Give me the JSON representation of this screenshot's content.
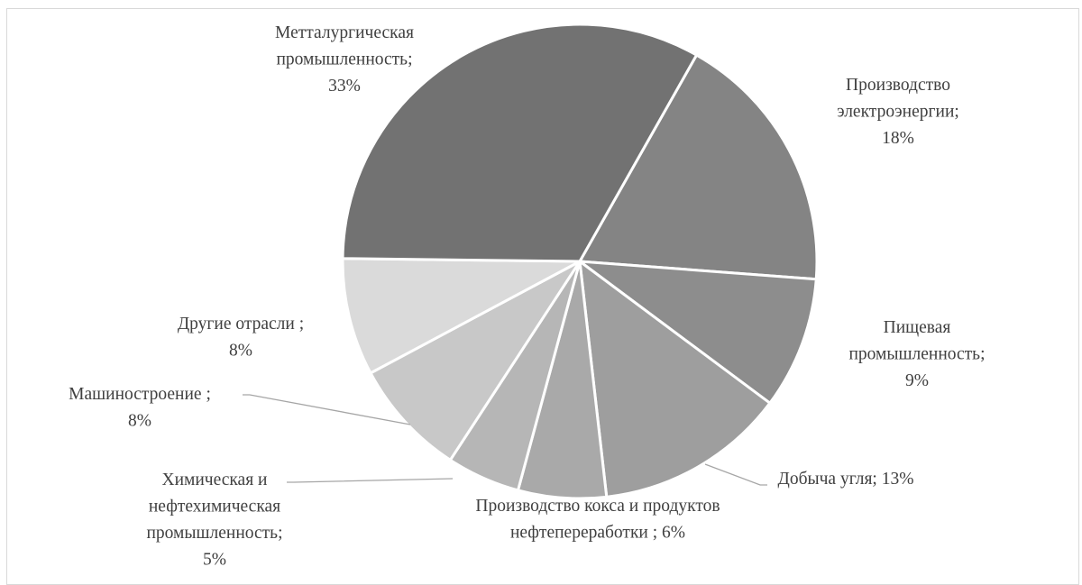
{
  "chart_data": {
    "type": "pie",
    "title": "",
    "legend": "none",
    "slices": [
      {
        "label_lines": [
          "Производство",
          "электроэнергии;",
          "18%"
        ],
        "value": 18,
        "color": "#848484"
      },
      {
        "label_lines": [
          "Пищевая",
          "промышленность;",
          "9%"
        ],
        "value": 9,
        "color": "#8d8d8d"
      },
      {
        "label_lines": [
          "Добыча угля;  13%"
        ],
        "value": 13,
        "color": "#9e9e9e"
      },
      {
        "label_lines": [
          "Производство  кокса и продуктов",
          "нефтепереработки  ; 6%"
        ],
        "value": 6,
        "color": "#a9a9a9"
      },
      {
        "label_lines": [
          "Химическая и",
          "нефтехимическая",
          "промышленность;",
          "5%"
        ],
        "value": 5,
        "color": "#b6b6b6"
      },
      {
        "label_lines": [
          "Машиностроение ;",
          "8%"
        ],
        "value": 8,
        "color": "#c8c8c8"
      },
      {
        "label_lines": [
          "Другие отрасли  ;",
          "8%"
        ],
        "value": 8,
        "color": "#dadada"
      },
      {
        "label_lines": [
          "Метталургическая",
          "промышленность;",
          "33%"
        ],
        "value": 33,
        "color": "#727272"
      }
    ]
  }
}
